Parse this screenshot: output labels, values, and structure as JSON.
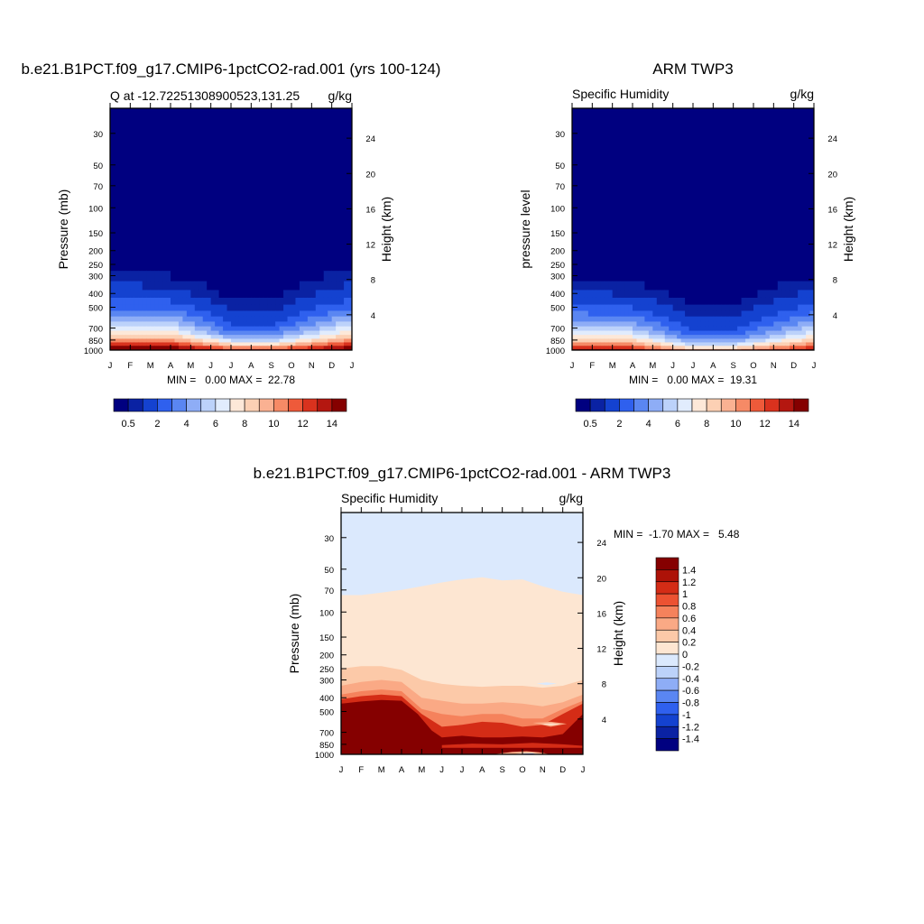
{
  "chart_data": [
    {
      "type": "heatmap",
      "title": "b.e21.B1PCT.f09_g17.CMIP6-1pctCO2-rad.001 (yrs 100-124)",
      "subtitle_left": "Q at -12.72251308900523,131.25",
      "subtitle_right": "g/kg",
      "ylabel": "Pressure (mb)",
      "y2label": "Height (km)",
      "stats": "MIN =   0.00 MAX =  22.78",
      "months": [
        "J",
        "F",
        "M",
        "A",
        "M",
        "J",
        "J",
        "A",
        "S",
        "O",
        "N",
        "D",
        "J"
      ],
      "pressure_ticks": [
        "30",
        "50",
        "70",
        "100",
        "150",
        "200",
        "250",
        "300",
        "400",
        "500",
        "700",
        "850",
        "1000"
      ],
      "height_ticks": [
        "24",
        "20",
        "16",
        "12",
        "8",
        "4"
      ],
      "colorbar_labels": [
        "0.5",
        "2",
        "4",
        "6",
        "8",
        "10",
        "12",
        "14"
      ],
      "colors": [
        "#000080",
        "#0a22a3",
        "#1442d0",
        "#2f60ee",
        "#5a86f2",
        "#8eadf6",
        "#bcd2fa",
        "#e1ecfd",
        "#fde8d8",
        "#fcd0b4",
        "#fab192",
        "#f68a66",
        "#ee5a3a",
        "#d9321e",
        "#b41710",
        "#850000"
      ],
      "field": {
        "lev": [
          1000,
          950,
          900,
          850,
          800,
          750,
          700,
          650,
          600,
          550,
          500,
          450,
          400,
          350,
          300,
          250,
          200
        ],
        "profiles": [
          {
            "month": 0,
            "q": [
              16.5,
              14.5,
              12.5,
              10.5,
              9,
              7.8,
              6.8,
              5.8,
              4.8,
              3.8,
              3.0,
              2.2,
              1.6,
              1.1,
              0.7,
              0.4,
              0.2
            ]
          },
          {
            "month": 3,
            "q": [
              16.8,
              14.6,
              12.5,
              10.3,
              8.8,
              7.5,
              6.5,
              5.5,
              4.5,
              3.6,
              2.8,
              2.0,
              1.4,
              0.9,
              0.5,
              0.3,
              0.15
            ]
          },
          {
            "month": 6,
            "q": [
              13.5,
              10.5,
              8,
              6,
              4.5,
              3.3,
              2.6,
              2.0,
              1.5,
              1.1,
              0.8,
              0.5,
              0.3,
              0.2,
              0.1,
              0.05,
              0.02
            ]
          },
          {
            "month": 8,
            "q": [
              13,
              10,
              7.5,
              5.5,
              4.2,
              3.2,
              2.5,
              1.9,
              1.4,
              1.0,
              0.7,
              0.5,
              0.3,
              0.2,
              0.1,
              0.05,
              0.02
            ]
          },
          {
            "month": 12,
            "q": [
              16.5,
              14.5,
              12.5,
              10.5,
              9,
              7.8,
              6.8,
              5.8,
              4.8,
              3.8,
              3.0,
              2.2,
              1.6,
              1.1,
              0.7,
              0.4,
              0.2
            ]
          }
        ]
      }
    },
    {
      "type": "heatmap",
      "title": "ARM TWP3",
      "subtitle_left": "Specific Humidity",
      "subtitle_right": "g/kg",
      "ylabel": "pressure level",
      "y2label": "Height (km)",
      "stats": "MIN =   0.00 MAX =  19.31",
      "months": [
        "J",
        "F",
        "M",
        "A",
        "M",
        "J",
        "J",
        "A",
        "S",
        "O",
        "N",
        "D",
        "J"
      ],
      "pressure_ticks": [
        "30",
        "50",
        "70",
        "100",
        "150",
        "200",
        "250",
        "300",
        "400",
        "500",
        "700",
        "850",
        "1000"
      ],
      "height_ticks": [
        "24",
        "20",
        "16",
        "12",
        "8",
        "4"
      ],
      "colorbar_labels": [
        "0.5",
        "2",
        "4",
        "6",
        "8",
        "10",
        "12",
        "14"
      ],
      "colors": [
        "#000080",
        "#0a22a3",
        "#1442d0",
        "#2f60ee",
        "#5a86f2",
        "#8eadf6",
        "#bcd2fa",
        "#e1ecfd",
        "#fde8d8",
        "#fcd0b4",
        "#fab192",
        "#f68a66",
        "#ee5a3a",
        "#d9321e",
        "#b41710",
        "#850000"
      ],
      "field": {
        "lev": [
          1000,
          950,
          900,
          850,
          800,
          750,
          700,
          650,
          600,
          550,
          500,
          450,
          400,
          350,
          300,
          250,
          200
        ],
        "profiles": [
          {
            "month": 0,
            "q": [
              15.5,
              12.5,
              10.5,
              8.8,
              7.5,
              6.4,
              5.5,
              4.7,
              3.9,
              3.1,
              2.4,
              1.7,
              1.2,
              0.8,
              0.5,
              0.3,
              0.15
            ]
          },
          {
            "month": 3,
            "q": [
              15,
              12,
              10,
              8.3,
              7,
              6,
              5.1,
              4.3,
              3.5,
              2.7,
              2.0,
              1.4,
              0.9,
              0.6,
              0.35,
              0.2,
              0.1
            ]
          },
          {
            "month": 6,
            "q": [
              10.5,
              7.5,
              5.5,
              4.0,
              3.0,
              2.2,
              1.7,
              1.3,
              1.0,
              0.7,
              0.5,
              0.35,
              0.2,
              0.1,
              0.05,
              0.02,
              0.01
            ]
          },
          {
            "month": 8,
            "q": [
              10.5,
              7.8,
              5.8,
              4.2,
              3.1,
              2.3,
              1.8,
              1.4,
              1.0,
              0.7,
              0.5,
              0.35,
              0.2,
              0.1,
              0.05,
              0.02,
              0.01
            ]
          },
          {
            "month": 12,
            "q": [
              15.5,
              12.5,
              10.5,
              8.8,
              7.5,
              6.4,
              5.5,
              4.7,
              3.9,
              3.1,
              2.4,
              1.7,
              1.2,
              0.8,
              0.5,
              0.3,
              0.15
            ]
          }
        ]
      }
    },
    {
      "type": "heatmap",
      "title": "b.e21.B1PCT.f09_g17.CMIP6-1pctCO2-rad.001 - ARM TWP3",
      "subtitle_left": "Specific Humidity",
      "subtitle_right": "g/kg",
      "ylabel": "Pressure (mb)",
      "y2label": "Height (km)",
      "stats": "MIN =  -1.70 MAX =   5.48",
      "months": [
        "J",
        "F",
        "M",
        "A",
        "M",
        "J",
        "J",
        "A",
        "S",
        "O",
        "N",
        "D",
        "J"
      ],
      "pressure_ticks": [
        "30",
        "50",
        "70",
        "100",
        "150",
        "200",
        "250",
        "300",
        "400",
        "500",
        "700",
        "850",
        "1000"
      ],
      "height_ticks": [
        "24",
        "20",
        "16",
        "12",
        "8",
        "4"
      ],
      "colorbar_labels": [
        "1.4",
        "1.2",
        "1",
        "0.8",
        "0.6",
        "0.4",
        "0.2",
        "0",
        "-0.2",
        "-0.4",
        "-0.6",
        "-0.8",
        "-1",
        "-1.2",
        "-1.4"
      ],
      "colors": [
        "#000080",
        "#0a22a3",
        "#1442d0",
        "#2f60ee",
        "#5a86f2",
        "#8eadf6",
        "#bcd2fa",
        "#dbe9fd",
        "#fde6d2",
        "#fcc9a8",
        "#faa985",
        "#f5825c",
        "#ec5232",
        "#d42c16",
        "#ad1208",
        "#850000"
      ],
      "levels": [
        -1.4,
        -1.2,
        -1,
        -0.8,
        -0.6,
        -0.4,
        -0.2,
        0,
        0.2,
        0.4,
        0.6,
        0.8,
        1,
        1.2,
        1.4
      ]
    }
  ]
}
